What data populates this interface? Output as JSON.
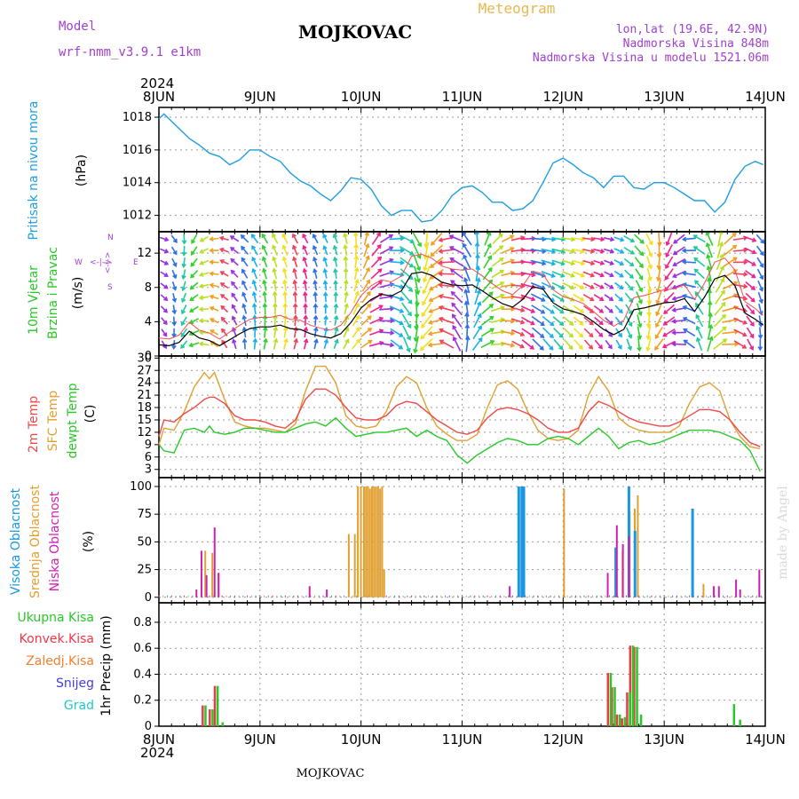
{
  "header": {
    "model_label": "Model",
    "model_name": "wrf-nmm_v3.9.1  e1km",
    "station": "MOJKOVAC",
    "product": "Meteogram",
    "coords": "lon,lat (19.6E, 42.9N)",
    "elevation": "Nadmorska Visina 848m",
    "model_elevation": "Nadmorska Visina u modelu 1521.06m",
    "footer_station": "MOJKOVAC",
    "credit": "made by Angel"
  },
  "time_axis": {
    "year": "2024",
    "ticks": [
      "8JUN",
      "9JUN",
      "10JUN",
      "11JUN",
      "12JUN",
      "13JUN",
      "14JUN"
    ],
    "range_days": [
      0,
      6
    ]
  },
  "colors": {
    "pressure": "#1e9ee0",
    "temp2m": "#f04848",
    "sfc_temp": "#e0a030",
    "dewpoint": "#28c828",
    "cloud_high": "#1898e0",
    "cloud_mid": "#e0a030",
    "cloud_low": "#d020b0",
    "precip_total": "#28c828",
    "precip_conv": "#f03848",
    "precip_frz": "#f08030",
    "precip_snow": "#4040e0",
    "precip_graupel": "#20c8c8",
    "model_label": "#a040d0",
    "coords": "#a040d0",
    "product": "#e8b850",
    "credit": "#d8d8d8"
  },
  "panels": {
    "pressure": {
      "labels": [
        "Pritisak na nivou mora"
      ],
      "unit": "(hPa)",
      "ylim": [
        1011,
        1018.6
      ],
      "yticks": [
        1012,
        1014,
        1016,
        1018
      ]
    },
    "wind": {
      "labels": [
        "10m Vjetar",
        "Brzina i Pravac"
      ],
      "unit": "(m/s)",
      "ylim": [
        0,
        14.5
      ],
      "yticks": [
        0,
        4,
        8,
        12
      ],
      "compass": {
        "n": "N",
        "s": "S",
        "e": "E",
        "w": "W",
        "arrow_v": "<-|->",
        "arrow_h": "<-|->"
      }
    },
    "temperature": {
      "labels": [
        "2m Temp",
        "SFC Temp",
        "dewpt Temp"
      ],
      "unit": "(C)",
      "ylim": [
        1,
        30.5
      ],
      "yticks": [
        3,
        6,
        9,
        12,
        15,
        18,
        21,
        24,
        27,
        30
      ]
    },
    "clouds": {
      "labels": [
        "Visoka Oblacnost",
        "Srednja Oblacnost",
        "Niska Oblacnost"
      ],
      "unit": "(%)",
      "ylim": [
        -5,
        108
      ],
      "yticks": [
        0,
        25,
        50,
        75,
        100
      ]
    },
    "precip": {
      "labels": [
        "Ukupna Kisa",
        "Konvek.Kisa",
        "Zaledj.Kisa",
        "Snijeg",
        "Grad"
      ],
      "unit": "1hr Precip (mm)",
      "ylim": [
        0,
        0.95
      ],
      "yticks": [
        0,
        0.2,
        0.4,
        0.6,
        0.8
      ]
    }
  },
  "chart_data": {
    "type": "line",
    "title": "MOJKOVAC",
    "x_unit": "days since 8JUN 2024 00UTC",
    "series": [
      {
        "name": "Pritisak na nivou mora",
        "x": [
          0,
          0.05,
          0.1,
          0.2,
          0.3,
          0.4,
          0.5,
          0.6,
          0.7,
          0.8,
          0.9,
          1.0,
          1.1,
          1.2,
          1.3,
          1.4,
          1.5,
          1.6,
          1.7,
          1.8,
          1.9,
          2.0,
          2.1,
          2.2,
          2.3,
          2.4,
          2.5,
          2.6,
          2.7,
          2.8,
          2.9,
          3.0,
          3.1,
          3.2,
          3.3,
          3.4,
          3.5,
          3.6,
          3.7,
          3.8,
          3.9,
          4.0,
          4.1,
          4.2,
          4.3,
          4.4,
          4.5,
          4.6,
          4.7,
          4.8,
          4.9,
          5.0,
          5.1,
          5.2,
          5.3,
          5.4,
          5.5,
          5.6,
          5.7,
          5.8,
          5.9,
          5.98
        ],
        "values": [
          1017.9,
          1018.2,
          1017.9,
          1017.3,
          1016.7,
          1016.3,
          1015.8,
          1015.6,
          1015.1,
          1015.4,
          1016.0,
          1016.0,
          1015.6,
          1015.3,
          1014.6,
          1014.1,
          1013.8,
          1013.3,
          1012.9,
          1013.5,
          1014.3,
          1014.2,
          1013.6,
          1012.6,
          1012.0,
          1012.3,
          1012.3,
          1011.6,
          1011.7,
          1012.3,
          1013.2,
          1013.7,
          1013.8,
          1013.4,
          1012.8,
          1012.8,
          1012.3,
          1012.4,
          1012.9,
          1014.0,
          1015.2,
          1015.5,
          1015.1,
          1014.6,
          1014.3,
          1013.7,
          1014.4,
          1014.4,
          1013.7,
          1013.6,
          1014.0,
          1014.0,
          1013.7,
          1013.3,
          1012.9,
          1012.9,
          1012.2,
          1012.8,
          1014.2,
          1015.0,
          1015.3,
          1015.1
        ]
      },
      {
        "name": "10m Vjetar Brzina",
        "x": [
          0,
          0.1,
          0.2,
          0.3,
          0.4,
          0.5,
          0.6,
          0.7,
          0.8,
          0.9,
          1.0,
          1.1,
          1.2,
          1.3,
          1.4,
          1.5,
          1.6,
          1.7,
          1.8,
          1.9,
          2.0,
          2.1,
          2.2,
          2.3,
          2.4,
          2.5,
          2.6,
          2.7,
          2.8,
          2.9,
          3.0,
          3.1,
          3.2,
          3.3,
          3.4,
          3.5,
          3.6,
          3.7,
          3.8,
          3.9,
          4.0,
          4.1,
          4.2,
          4.3,
          4.4,
          4.5,
          4.6,
          4.7,
          4.8,
          4.9,
          5.0,
          5.1,
          5.2,
          5.3,
          5.4,
          5.5,
          5.6,
          5.7,
          5.8,
          5.9,
          5.98
        ],
        "values": [
          1.3,
          1.2,
          1.6,
          2.9,
          2.1,
          1.8,
          1.2,
          1.9,
          2.6,
          3.2,
          3.4,
          3.4,
          3.6,
          3.2,
          3.1,
          2.6,
          2.3,
          2.1,
          2.6,
          3.9,
          5.6,
          6.6,
          7.2,
          7.0,
          7.6,
          9.6,
          9.8,
          9.4,
          8.6,
          8.3,
          8.2,
          8.3,
          7.6,
          6.8,
          6.1,
          5.7,
          6.6,
          8.1,
          7.8,
          6.2,
          5.5,
          5.2,
          4.8,
          4.0,
          3.1,
          2.5,
          3.1,
          5.4,
          5.6,
          5.9,
          6.2,
          6.3,
          6.7,
          5.2,
          6.9,
          9.0,
          9.4,
          8.2,
          5.0,
          4.3,
          3.6
        ]
      },
      {
        "name": "2m Temp",
        "x": [
          0,
          0.05,
          0.15,
          0.25,
          0.35,
          0.45,
          0.5,
          0.55,
          0.65,
          0.75,
          0.85,
          0.95,
          1.05,
          1.15,
          1.25,
          1.35,
          1.45,
          1.55,
          1.65,
          1.75,
          1.85,
          1.95,
          2.05,
          2.15,
          2.25,
          2.35,
          2.45,
          2.55,
          2.65,
          2.75,
          2.85,
          2.95,
          3.05,
          3.15,
          3.25,
          3.35,
          3.45,
          3.55,
          3.65,
          3.75,
          3.85,
          3.95,
          4.05,
          4.15,
          4.25,
          4.35,
          4.45,
          4.55,
          4.65,
          4.75,
          4.85,
          4.95,
          5.05,
          5.15,
          5.25,
          5.35,
          5.45,
          5.55,
          5.65,
          5.75,
          5.85,
          5.95
        ],
        "values": [
          11.0,
          15.0,
          14.5,
          16.5,
          18.0,
          20.0,
          20.5,
          20.5,
          19.0,
          16.0,
          15.0,
          15.0,
          14.5,
          13.5,
          13.0,
          15.0,
          20.0,
          22.5,
          22.5,
          21.0,
          18.0,
          15.5,
          15.0,
          15.0,
          16.0,
          18.5,
          19.5,
          19.0,
          17.0,
          15.0,
          13.5,
          12.0,
          11.5,
          12.5,
          15.5,
          17.5,
          18.0,
          17.5,
          16.5,
          15.0,
          13.0,
          12.0,
          12.0,
          13.0,
          17.0,
          19.5,
          18.5,
          17.0,
          15.5,
          14.5,
          14.0,
          13.5,
          13.5,
          14.5,
          16.0,
          17.5,
          17.5,
          17.0,
          15.0,
          12.0,
          9.5,
          8.5
        ]
      },
      {
        "name": "SFC Temp",
        "x": [
          0,
          0.05,
          0.15,
          0.25,
          0.35,
          0.45,
          0.5,
          0.55,
          0.65,
          0.75,
          0.85,
          0.95,
          1.05,
          1.15,
          1.25,
          1.35,
          1.45,
          1.55,
          1.65,
          1.75,
          1.85,
          1.95,
          2.05,
          2.15,
          2.25,
          2.35,
          2.45,
          2.55,
          2.65,
          2.75,
          2.85,
          2.95,
          3.05,
          3.15,
          3.25,
          3.35,
          3.45,
          3.55,
          3.65,
          3.75,
          3.85,
          3.95,
          4.05,
          4.15,
          4.25,
          4.35,
          4.45,
          4.55,
          4.65,
          4.75,
          4.85,
          4.95,
          5.05,
          5.15,
          5.25,
          5.35,
          5.45,
          5.55,
          5.65,
          5.75,
          5.85,
          5.95
        ],
        "values": [
          9.0,
          13.0,
          12.5,
          17.0,
          23.0,
          26.5,
          25.0,
          26.5,
          20.0,
          14.5,
          13.5,
          13.0,
          13.0,
          12.5,
          12.0,
          14.0,
          22.0,
          28.0,
          28.0,
          24.0,
          16.0,
          13.5,
          13.0,
          13.5,
          17.0,
          23.0,
          25.5,
          24.0,
          18.0,
          13.5,
          11.5,
          10.0,
          10.0,
          11.5,
          18.0,
          23.5,
          24.5,
          22.5,
          17.0,
          12.5,
          10.5,
          10.0,
          10.5,
          12.5,
          21.0,
          25.5,
          22.0,
          15.5,
          13.5,
          12.5,
          12.0,
          12.0,
          12.0,
          13.5,
          19.0,
          23.0,
          24.0,
          22.0,
          15.0,
          11.0,
          8.5,
          8.0
        ]
      },
      {
        "name": "dewpt Temp",
        "x": [
          0,
          0.05,
          0.15,
          0.25,
          0.35,
          0.45,
          0.5,
          0.55,
          0.65,
          0.75,
          0.85,
          0.95,
          1.05,
          1.15,
          1.25,
          1.35,
          1.45,
          1.55,
          1.65,
          1.75,
          1.85,
          1.95,
          2.05,
          2.15,
          2.25,
          2.35,
          2.45,
          2.55,
          2.65,
          2.75,
          2.85,
          2.95,
          3.05,
          3.15,
          3.25,
          3.35,
          3.45,
          3.55,
          3.65,
          3.75,
          3.85,
          3.95,
          4.05,
          4.15,
          4.25,
          4.35,
          4.45,
          4.55,
          4.65,
          4.75,
          4.85,
          4.95,
          5.05,
          5.15,
          5.25,
          5.35,
          5.45,
          5.55,
          5.65,
          5.75,
          5.85,
          5.95
        ],
        "values": [
          9.0,
          7.5,
          7.0,
          12.5,
          13.0,
          12.0,
          13.5,
          12.0,
          11.5,
          12.0,
          13.0,
          13.0,
          12.5,
          12.0,
          12.0,
          13.0,
          14.0,
          14.5,
          13.5,
          15.5,
          13.0,
          11.0,
          11.5,
          12.0,
          12.0,
          12.5,
          13.0,
          11.0,
          12.5,
          11.0,
          10.0,
          6.5,
          4.5,
          6.5,
          8.0,
          9.5,
          10.5,
          10.0,
          9.0,
          9.0,
          10.5,
          11.0,
          10.5,
          9.0,
          11.0,
          13.0,
          11.0,
          8.0,
          9.5,
          10.0,
          9.0,
          9.5,
          10.5,
          11.5,
          12.5,
          12.5,
          12.5,
          12.0,
          11.0,
          10.0,
          7.5,
          2.5
        ]
      }
    ],
    "clouds": {
      "high": {
        "x": [
          3.53,
          3.56,
          3.58,
          4.49,
          4.62,
          4.68,
          5.25
        ],
        "values": [
          100,
          100,
          100,
          45,
          100,
          60,
          80
        ]
      },
      "mid": {
        "x": [
          0.45,
          0.52,
          0.58,
          1.87,
          1.93,
          1.96,
          1.99,
          2.02,
          2.04,
          2.06,
          2.08,
          2.1,
          2.12,
          2.14,
          2.16,
          2.18,
          2.2,
          2.22,
          4.0,
          4.52,
          4.58,
          4.65,
          4.7,
          4.73,
          5.38
        ],
        "values": [
          42,
          40,
          22,
          57,
          57,
          100,
          100,
          100,
          100,
          100,
          98,
          100,
          100,
          100,
          100,
          98,
          100,
          25,
          98,
          5,
          42,
          78,
          80,
          92,
          12
        ]
      },
      "low": {
        "x": [
          0.38,
          0.43,
          0.48,
          0.56,
          0.6,
          1.5,
          1.67,
          3.48,
          4.45,
          4.54,
          4.6,
          4.66,
          5.5,
          5.55,
          5.72,
          5.76,
          5.95
        ],
        "values": [
          7,
          42,
          20,
          63,
          22,
          10,
          7,
          10,
          22,
          65,
          48,
          55,
          10,
          10,
          16,
          7,
          25
        ]
      }
    },
    "precip": {
      "total": {
        "x": [
          0.45,
          0.52,
          0.57,
          0.62,
          4.46,
          4.5,
          4.55,
          4.6,
          4.65,
          4.68,
          4.72,
          4.76,
          5.68,
          5.74
        ],
        "values": [
          0.16,
          0.13,
          0.31,
          0.03,
          0.41,
          0.3,
          0.09,
          0.07,
          0.26,
          0.62,
          0.61,
          0.09,
          0.17,
          0.05
        ]
      },
      "convective": {
        "x": [
          0.44,
          0.51,
          0.56,
          4.45,
          4.49,
          4.54,
          4.59,
          4.64,
          4.67,
          4.71
        ],
        "values": [
          0.16,
          0.13,
          0.31,
          0.41,
          0.3,
          0.09,
          0.06,
          0.26,
          0.62,
          0.61
        ]
      }
    }
  }
}
